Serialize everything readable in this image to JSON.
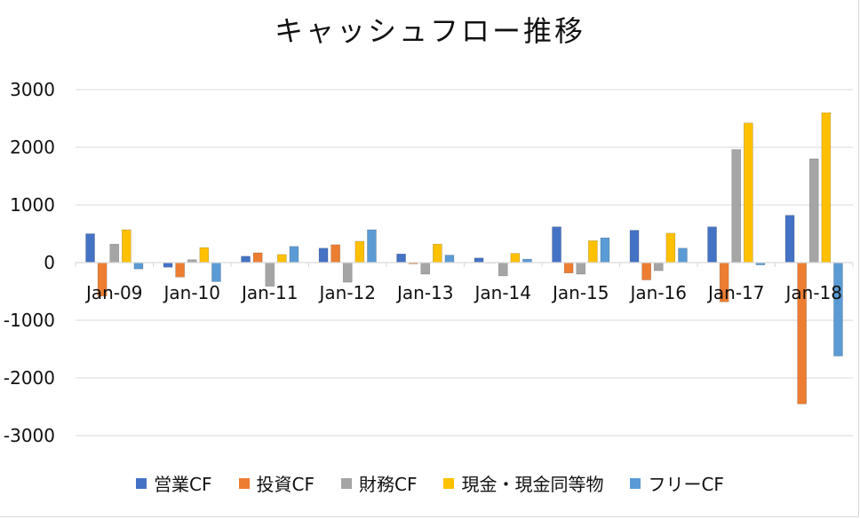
{
  "chart_data": {
    "type": "bar",
    "title": "キャッシュフロー推移",
    "categories": [
      "Jan-09",
      "Jan-10",
      "Jan-11",
      "Jan-12",
      "Jan-13",
      "Jan-14",
      "Jan-15",
      "Jan-16",
      "Jan-17",
      "Jan-18"
    ],
    "yticks": [
      "3000",
      "2000",
      "1000",
      "0",
      "-1000",
      "-2000",
      "-3000"
    ],
    "ylim": [
      -3000,
      3000
    ],
    "grid": true,
    "legend_position": "bottom",
    "series": [
      {
        "name": "営業CF",
        "color": "#4472C4",
        "values": [
          500,
          -80,
          110,
          250,
          150,
          80,
          620,
          560,
          620,
          820
        ]
      },
      {
        "name": "投資CF",
        "color": "#ED7D31",
        "values": [
          -580,
          -250,
          170,
          310,
          -20,
          0,
          -180,
          -300,
          -680,
          -2450
        ]
      },
      {
        "name": "財務CF",
        "color": "#A5A5A5",
        "values": [
          320,
          50,
          -410,
          -340,
          -200,
          -230,
          -200,
          -140,
          1960,
          1800
        ]
      },
      {
        "name": "現金・現金同等物",
        "color": "#FFC000",
        "values": [
          570,
          260,
          140,
          370,
          320,
          160,
          380,
          510,
          2420,
          2600
        ]
      },
      {
        "name": "フリーCF",
        "color": "#5B9BD5",
        "values": [
          -110,
          -330,
          280,
          570,
          130,
          60,
          430,
          250,
          -40,
          -1620
        ]
      }
    ]
  }
}
